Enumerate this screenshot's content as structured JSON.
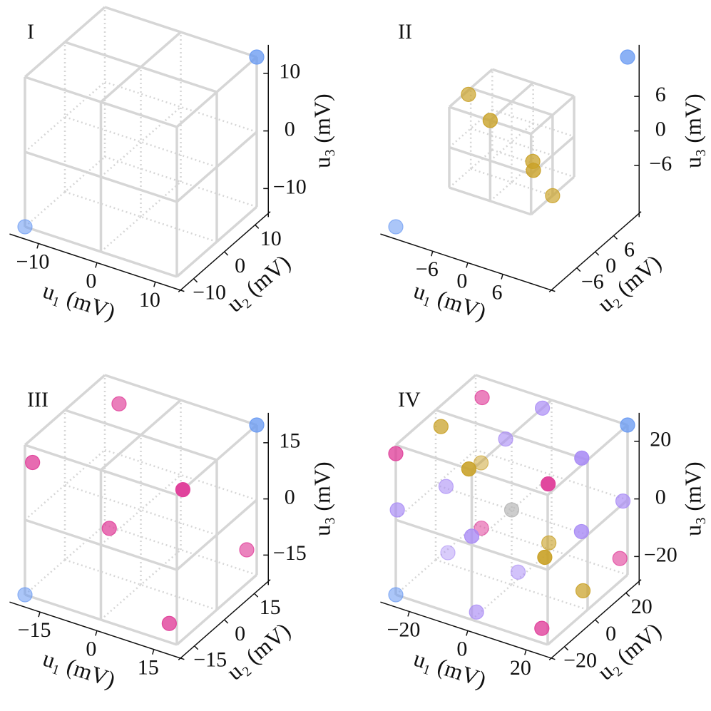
{
  "chart_data": [
    {
      "type": "scatter3d",
      "title": "I",
      "xlabel": "u₁ (mV)",
      "ylabel": "u₂ (mV)",
      "zlabel": "u₃ (mV)",
      "xlim": [
        -13,
        13
      ],
      "ylim": [
        -13,
        13
      ],
      "zlim": [
        -13,
        13
      ],
      "xticks": [
        {
          "value": -10,
          "label": "−10"
        },
        0,
        10
      ],
      "yticks": [
        {
          "value": -10,
          "label": "−10"
        },
        0,
        10
      ],
      "zticks": [
        {
          "value": -10,
          "label": "−10"
        },
        0,
        10
      ],
      "series": [
        {
          "color": "#6b9bf2",
          "x": [
            -13,
            13
          ],
          "y": [
            -13,
            13
          ],
          "z": [
            -13,
            13
          ]
        }
      ]
    },
    {
      "type": "scatter3d",
      "title": "II",
      "xlabel": "u₁ (mV)",
      "ylabel": "u₂ (mV)",
      "zlabel": "u₃ (mV)",
      "xlim": [
        -13,
        13
      ],
      "ylim": [
        -13,
        13
      ],
      "zlim": [
        -13,
        13
      ],
      "box": [
        -7,
        7
      ],
      "xticks": [
        {
          "value": -6,
          "label": "−6"
        },
        0,
        6
      ],
      "yticks": [
        {
          "value": -6,
          "label": "−6"
        },
        0,
        6
      ],
      "zticks": [
        {
          "value": -6,
          "label": "−6"
        },
        0,
        6
      ],
      "series": [
        {
          "color": "#6b9bf2",
          "x": [
            -13,
            13
          ],
          "y": [
            -13,
            13
          ],
          "z": [
            -13,
            13
          ]
        },
        {
          "color": "#c9a127",
          "x": [
            -6.4,
            0,
            5.4,
            7.4,
            7
          ],
          "y": [
            -1.9,
            -7,
            -3.4,
            -7,
            0
          ],
          "z": [
            7,
            7,
            0,
            0.8,
            -7
          ]
        }
      ]
    },
    {
      "type": "scatter3d",
      "title": "III",
      "xlabel": "u₁ (mV)",
      "ylabel": "u₂ (mV)",
      "zlabel": "u₃ (mV)",
      "xlim": [
        -20,
        20
      ],
      "ylim": [
        -20,
        20
      ],
      "zlim": [
        -20,
        20
      ],
      "xticks": [
        {
          "value": -15,
          "label": "−15"
        },
        0,
        15
      ],
      "yticks": [
        {
          "value": -15,
          "label": "−15"
        },
        0,
        15
      ],
      "zticks": [
        {
          "value": -15,
          "label": "−15"
        },
        0,
        15
      ],
      "series": [
        {
          "color": "#6b9bf2",
          "x": [
            -20,
            20
          ],
          "y": [
            -20,
            20
          ],
          "z": [
            -20,
            20
          ]
        },
        {
          "color": "#e0409a",
          "x": [
            -18,
            -11,
            20,
            -2,
            20,
            18
          ],
          "y": [
            -20,
            10,
            -17,
            -12,
            15,
            -20
          ],
          "z": [
            16,
            20,
            20,
            0,
            -11,
            -15
          ]
        }
      ]
    },
    {
      "type": "scatter3d",
      "title": "IV",
      "xlabel": "u₁ (mV)",
      "ylabel": "u₂ (mV)",
      "zlabel": "u₃ (mV)",
      "xlim": [
        -26,
        26
      ],
      "ylim": [
        -26,
        26
      ],
      "zlim": [
        -26,
        26
      ],
      "xticks": [
        {
          "value": -20,
          "label": "−20"
        },
        0,
        20
      ],
      "yticks": [
        {
          "value": -20,
          "label": "−20"
        },
        0,
        20
      ],
      "zticks": [
        {
          "value": -20,
          "label": "−20"
        },
        0,
        20
      ],
      "series": [
        {
          "color": "#6b9bf2",
          "x": [
            -26,
            26
          ],
          "y": [
            -26,
            26
          ],
          "z": [
            -26,
            26
          ]
        },
        {
          "color": "#e0409a",
          "x": [
            -18,
            -26,
            23,
            -13,
            26,
            24
          ],
          "y": [
            15,
            -26,
            -20,
            5,
            21,
            -26
          ],
          "z": [
            26,
            23,
            26,
            -13,
            -18,
            -21
          ]
        },
        {
          "color": "#c9a127",
          "x": [
            -20,
            -1,
            -21,
            8,
            25,
            26
          ],
          "y": [
            -8,
            -26,
            20,
            9,
            -26,
            -3
          ],
          "z": [
            26,
            26,
            0,
            -13,
            4,
            -18
          ]
        },
        {
          "color": "#a98bf5",
          "x": [
            0,
            -11,
            24,
            -23,
            -26,
            26,
            0,
            26,
            -25,
            -2,
            -1
          ],
          "y": [
            20,
            17,
            0,
            1,
            -25,
            23,
            -26,
            -4,
            6,
            8,
            -21
          ],
          "z": [
            26,
            13,
            26,
            0,
            3,
            1,
            3,
            3,
            -26,
            -26,
            -26
          ]
        },
        {
          "color": "#b5b5b5",
          "x": [
            0
          ],
          "y": [
            0
          ],
          "z": [
            0
          ]
        }
      ]
    }
  ]
}
